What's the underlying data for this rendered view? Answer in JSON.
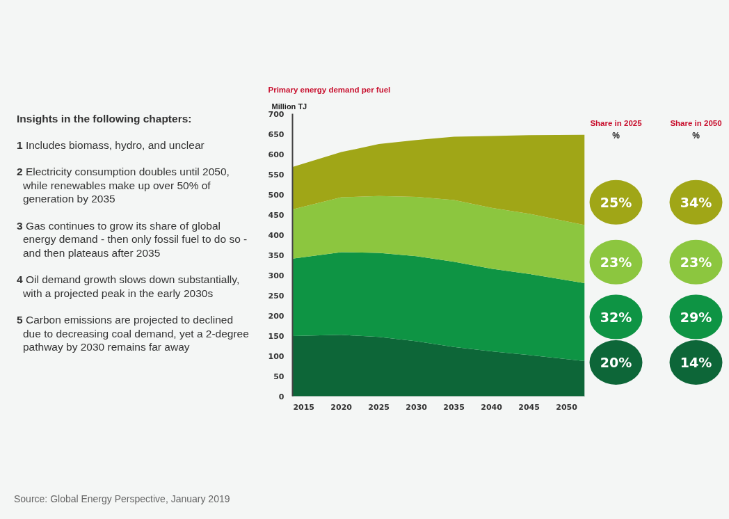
{
  "chart_data": {
    "type": "area",
    "stacked": true,
    "title": "Primary energy demand per fuel",
    "ylabel": "Million TJ",
    "x": [
      2013.5,
      2020,
      2025,
      2030,
      2035,
      2040,
      2045,
      2052.4
    ],
    "xlim": [
      2013.5,
      2052.4
    ],
    "xticks": [
      2015,
      2020,
      2025,
      2030,
      2035,
      2040,
      2045,
      2050
    ],
    "ylim": [
      0,
      700
    ],
    "yticks": [
      0,
      50,
      100,
      150,
      200,
      250,
      300,
      350,
      400,
      450,
      500,
      550,
      600,
      650,
      700
    ],
    "series": [
      {
        "color": "#0d6638",
        "values": [
          149,
          152,
          147,
          136,
          122,
          111,
          102,
          87
        ]
      },
      {
        "color": "#0e9444",
        "values": [
          192,
          205,
          208,
          211,
          211,
          205,
          201,
          193
        ]
      },
      {
        "color": "#8cc63f",
        "values": [
          122,
          136,
          141,
          147,
          153,
          151,
          149,
          144
        ]
      },
      {
        "color": "#a0a617",
        "values": [
          105,
          112,
          129,
          141,
          157,
          178,
          195,
          224
        ]
      }
    ],
    "annotations": [
      "Share in 2025",
      "Share in 2050",
      "%",
      "%",
      "20%",
      "32%",
      "23%",
      "25%",
      "14%",
      "29%",
      "23%",
      "34%",
      "Insights in the following chapters:",
      "1 Includes biomass, hydro, and unclear",
      "2 Electricity consumption doubles until 2050, while renewables make up over 50% of generation by 2035",
      "3 Gas continues to grow its share of global energy demand - then only fossil fuel to do so - and then plateaus after 2035",
      "4 Oil demand growth slows down substantially, with a projected peak in the early 2030s",
      "5 Carbon emissions are projected to declined due to decreasing coal demand, yet a 2-degree pathway by 2030 remains far away",
      "Source: Global Energy Perspective, January 2019"
    ]
  }
}
